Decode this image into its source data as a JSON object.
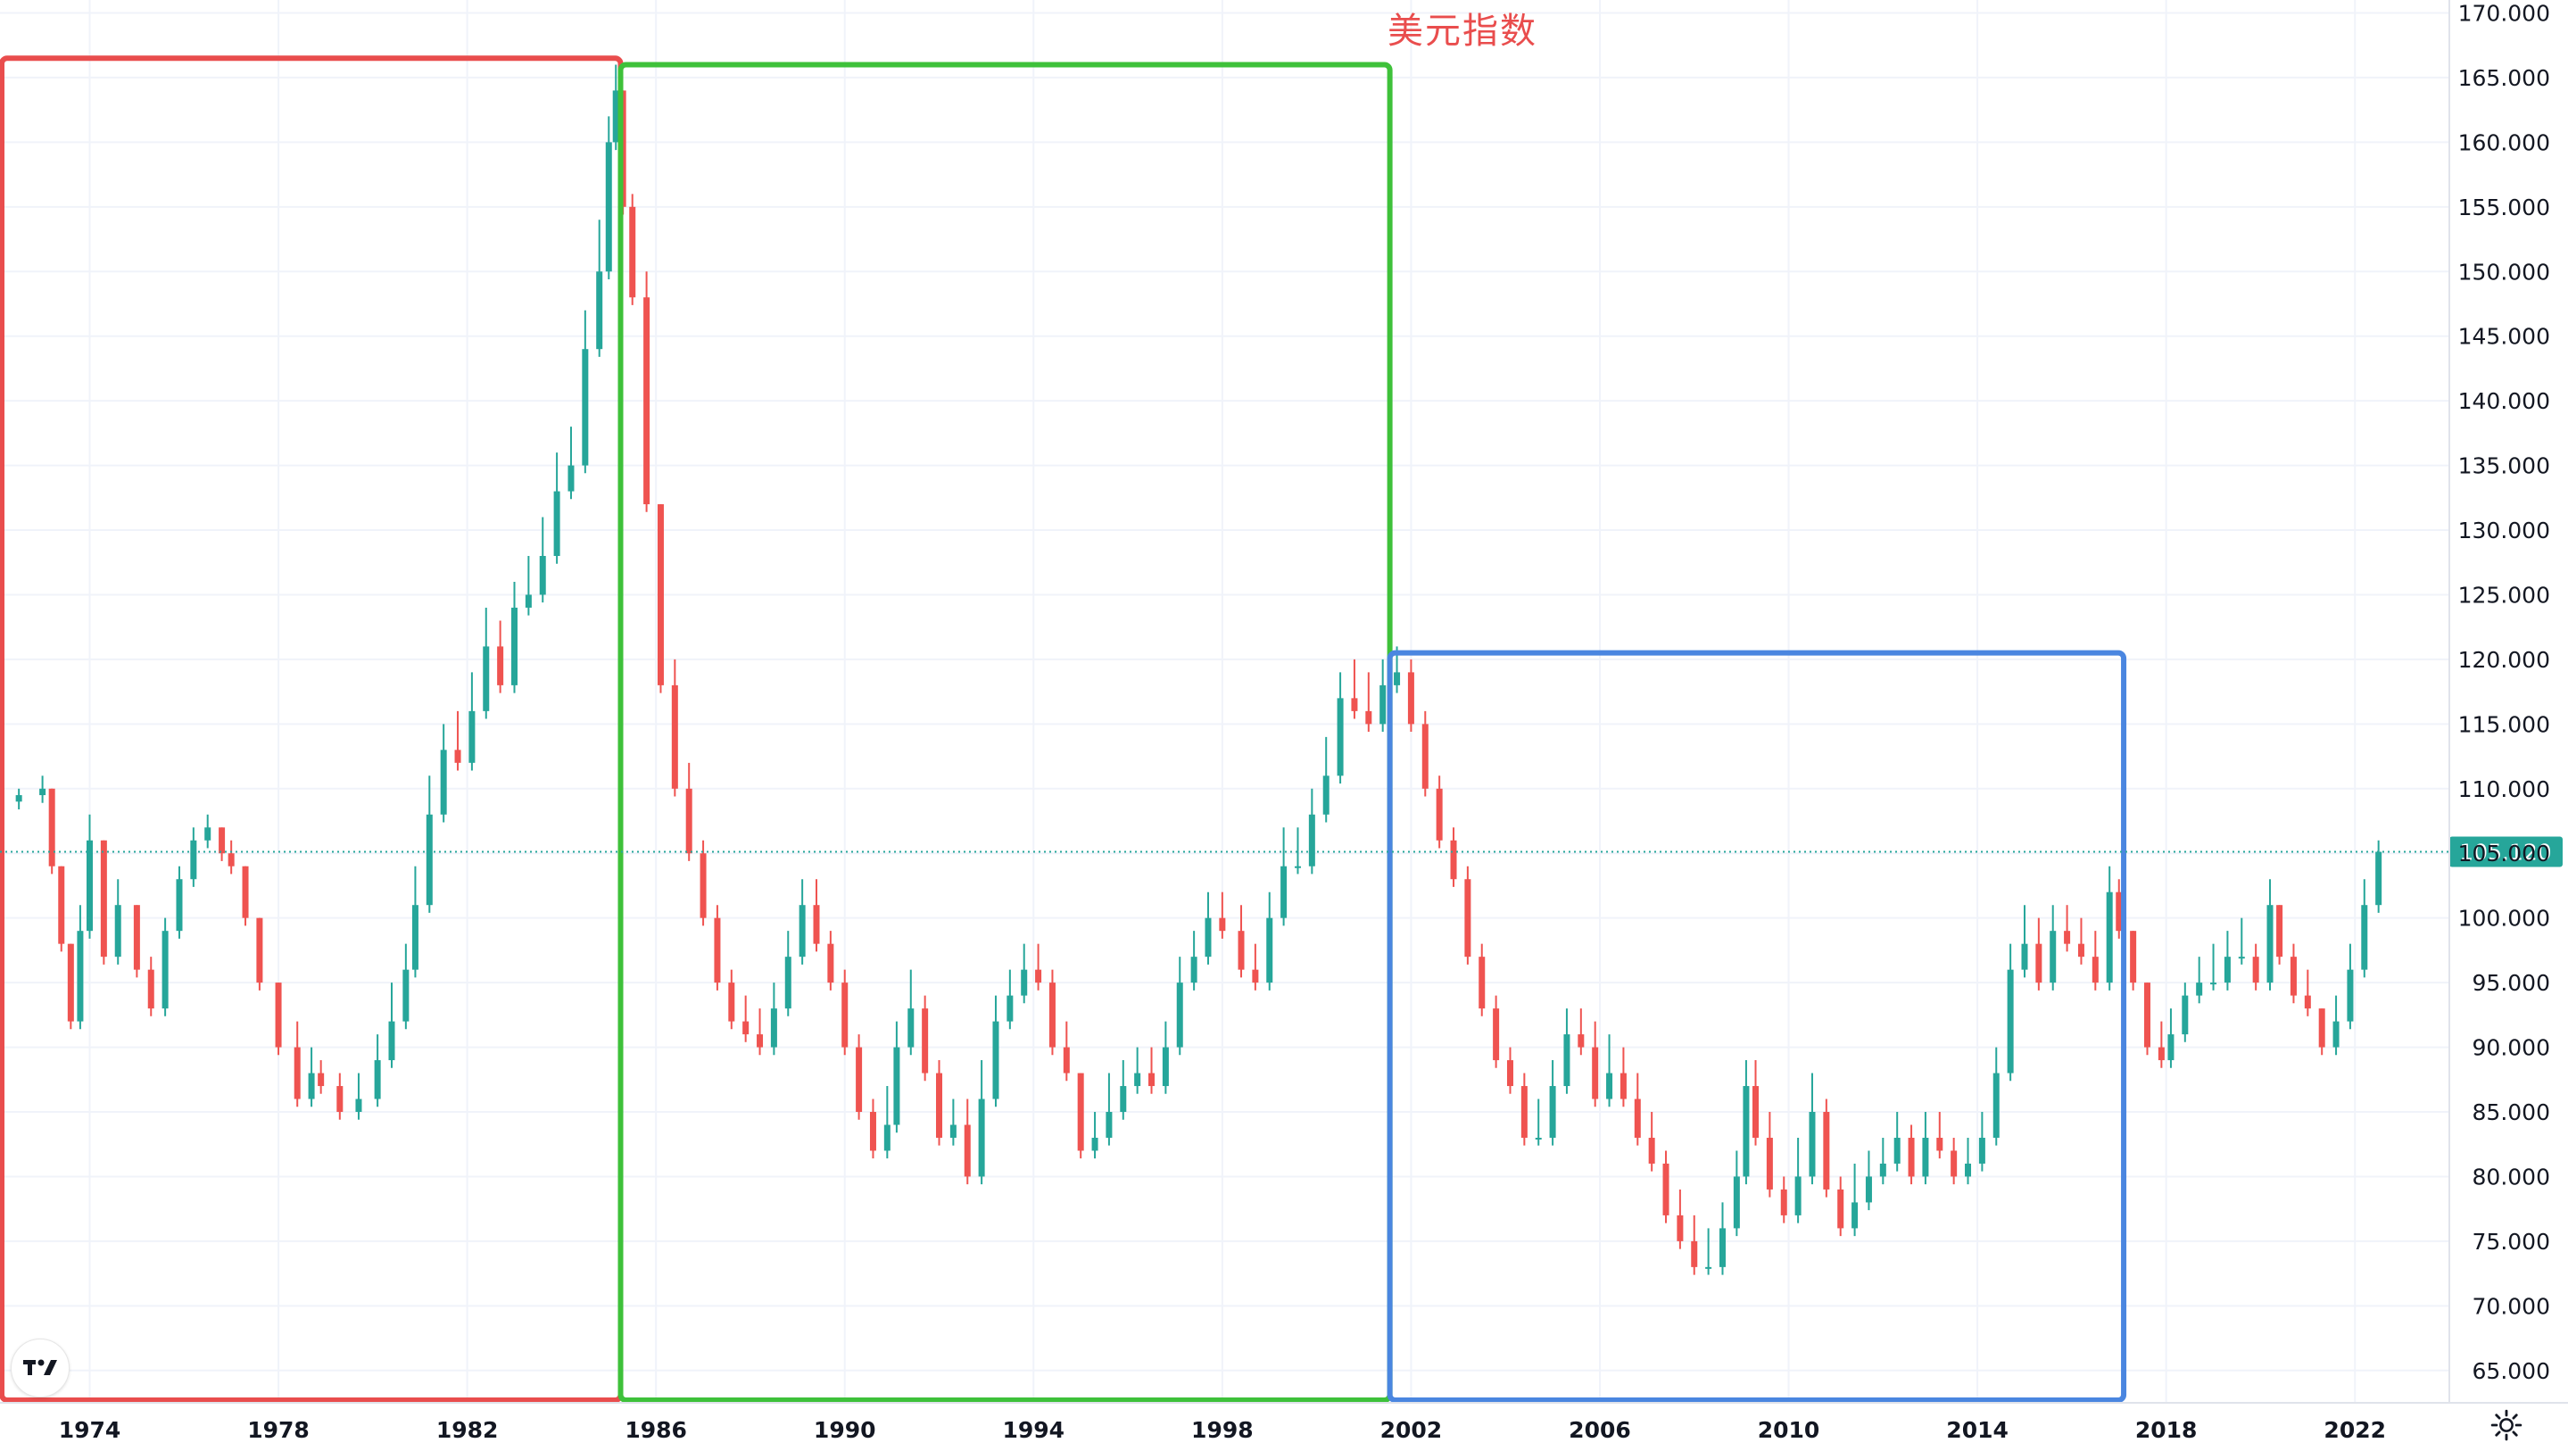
{
  "chart_data": {
    "type": "candlestick",
    "title": "美元指数",
    "current_value": 105.12,
    "current_value_label": "105.120",
    "x_ticks": [
      "1974",
      "1978",
      "1982",
      "1986",
      "1990",
      "1994",
      "1998",
      "2002",
      "2006",
      "2010",
      "2014",
      "2018",
      "2022"
    ],
    "y_ticks": [
      "65.000",
      "70.000",
      "75.000",
      "80.000",
      "85.000",
      "90.000",
      "95.000",
      "100.000",
      "105.000",
      "110.000",
      "115.000",
      "120.000",
      "125.000",
      "130.000",
      "135.000",
      "140.000",
      "145.000",
      "150.000",
      "155.000",
      "160.000",
      "165.000",
      "170.000"
    ],
    "xlim": [
      1972.1,
      2024.0
    ],
    "ylim": [
      62.5,
      171.0
    ],
    "grid": true,
    "up_color": "#26a69a",
    "down_color": "#ef5350",
    "series": [
      {
        "x": [
          1972.1,
          1972.5,
          1973.0,
          1973.2,
          1973.4,
          1973.6,
          1973.8,
          1974.0,
          1974.3,
          1974.6,
          1975.0,
          1975.3,
          1975.6,
          1975.9,
          1976.2,
          1976.5,
          1976.8,
          1977.0,
          1977.3,
          1977.6,
          1978.0,
          1978.4,
          1978.7,
          1978.9,
          1979.3,
          1979.7,
          1980.1,
          1980.4,
          1980.7,
          1980.9,
          1981.2,
          1981.5,
          1981.8,
          1982.1,
          1982.4,
          1982.7,
          1983.0,
          1983.3,
          1983.6,
          1983.9,
          1984.2,
          1984.5,
          1984.8,
          1985.0,
          1985.15,
          1985.3,
          1985.5,
          1985.8,
          1986.1,
          1986.4,
          1986.7,
          1987.0,
          1987.3,
          1987.6,
          1987.9,
          1988.2,
          1988.5,
          1988.8,
          1989.1,
          1989.4,
          1989.7,
          1990.0,
          1990.3,
          1990.6,
          1990.9,
          1991.1,
          1991.4,
          1991.7,
          1992.0,
          1992.3,
          1992.6,
          1992.9,
          1993.2,
          1993.5,
          1993.8,
          1994.1,
          1994.4,
          1994.7,
          1995.0,
          1995.3,
          1995.6,
          1995.9,
          1996.2,
          1996.5,
          1996.8,
          1997.1,
          1997.4,
          1997.7,
          1998.0,
          1998.4,
          1998.7,
          1999.0,
          1999.3,
          1999.6,
          1999.9,
          2000.2,
          2000.5,
          2000.8,
          2001.1,
          2001.4,
          2001.7,
          2002.0,
          2002.3,
          2002.6,
          2002.9,
          2003.2,
          2003.5,
          2003.8,
          2004.1,
          2004.4,
          2004.7,
          2005.0,
          2005.3,
          2005.6,
          2005.9,
          2006.2,
          2006.5,
          2006.8,
          2007.1,
          2007.4,
          2007.7,
          2008.0,
          2008.3,
          2008.6,
          2008.9,
          2009.1,
          2009.3,
          2009.6,
          2009.9,
          2010.2,
          2010.5,
          2010.8,
          2011.1,
          2011.4,
          2011.7,
          2012.0,
          2012.3,
          2012.6,
          2012.9,
          2013.2,
          2013.5,
          2013.8,
          2014.1,
          2014.4,
          2014.7,
          2015.0,
          2015.3,
          2015.6,
          2015.9,
          2016.2,
          2016.5,
          2016.8,
          2017.0,
          2017.3,
          2017.6,
          2017.9,
          2018.1,
          2018.4,
          2018.7,
          2019.0,
          2019.3,
          2019.6,
          2019.9,
          2020.2,
          2020.4,
          2020.7,
          2021.0,
          2021.3,
          2021.6,
          2021.9,
          2022.2,
          2022.5
        ],
        "close": [
          109,
          109.5,
          110,
          104,
          98,
          92,
          99,
          106,
          97,
          101,
          96,
          93,
          99,
          103,
          106,
          107,
          105,
          104,
          100,
          95,
          90,
          86,
          88,
          87,
          85,
          86,
          89,
          92,
          96,
          101,
          108,
          113,
          112,
          116,
          121,
          118,
          124,
          125,
          128,
          133,
          135,
          144,
          150,
          160,
          164,
          155,
          148,
          132,
          118,
          110,
          105,
          100,
          95,
          92,
          91,
          90,
          93,
          97,
          101,
          98,
          95,
          90,
          85,
          82,
          84,
          90,
          93,
          88,
          83,
          84,
          80,
          86,
          92,
          94,
          96,
          95,
          90,
          88,
          82,
          83,
          85,
          87,
          88,
          87,
          90,
          95,
          97,
          100,
          99,
          96,
          95,
          100,
          104,
          104,
          108,
          111,
          117,
          116,
          115,
          118,
          119,
          115,
          110,
          106,
          103,
          97,
          93,
          89,
          87,
          83,
          83,
          87,
          91,
          90,
          86,
          88,
          86,
          83,
          81,
          77,
          75,
          73,
          73,
          76,
          80,
          87,
          83,
          79,
          77,
          80,
          85,
          79,
          76,
          78,
          80,
          81,
          83,
          80,
          83,
          82,
          80,
          81,
          83,
          88,
          96,
          98,
          95,
          99,
          98,
          97,
          95,
          102,
          99,
          95,
          90,
          89,
          91,
          94,
          95,
          95,
          97,
          97,
          95,
          101,
          97,
          94,
          93,
          90,
          92,
          96,
          101,
          105.12
        ],
        "high": [
          110,
          110,
          111,
          110,
          104,
          98,
          101,
          108,
          106,
          103,
          101,
          97,
          100,
          104,
          107,
          108,
          107,
          106,
          104,
          100,
          95,
          92,
          90,
          89,
          88,
          88,
          91,
          95,
          98,
          104,
          111,
          115,
          116,
          119,
          124,
          123,
          126,
          128,
          131,
          136,
          138,
          147,
          154,
          162,
          166,
          164,
          156,
          150,
          132,
          120,
          112,
          106,
          101,
          96,
          94,
          93,
          95,
          99,
          103,
          103,
          99,
          96,
          91,
          86,
          87,
          92,
          96,
          94,
          89,
          86,
          86,
          89,
          94,
          96,
          98,
          98,
          96,
          92,
          88,
          85,
          88,
          89,
          90,
          90,
          92,
          97,
          99,
          102,
          102,
          101,
          98,
          102,
          107,
          107,
          110,
          114,
          119,
          120,
          119,
          120,
          121,
          120,
          116,
          111,
          107,
          104,
          98,
          94,
          90,
          88,
          86,
          89,
          93,
          93,
          92,
          91,
          90,
          88,
          85,
          82,
          79,
          77,
          76,
          78,
          82,
          89,
          89,
          85,
          80,
          83,
          88,
          86,
          80,
          81,
          82,
          83,
          85,
          84,
          85,
          85,
          83,
          83,
          85,
          90,
          98,
          101,
          100,
          101,
          101,
          100,
          99,
          104,
          103,
          99,
          95,
          92,
          93,
          95,
          97,
          98,
          99,
          100,
          98,
          103,
          101,
          98,
          96,
          93,
          94,
          98,
          103,
          106
        ]
      }
    ],
    "annotations": [
      {
        "type": "rect",
        "color": "#e94d4d",
        "x_from": 1972.1,
        "x_to": 1985.25,
        "y_from": 62.5,
        "y_to": 166.5
      },
      {
        "type": "rect",
        "color": "#3ec13a",
        "x_from": 1985.25,
        "x_to": 2001.55,
        "y_from": 62.5,
        "y_to": 166.0
      },
      {
        "type": "rect",
        "color": "#4a86e0",
        "x_from": 2001.55,
        "x_to": 2017.1,
        "y_from": 62.5,
        "y_to": 120.5
      }
    ]
  }
}
